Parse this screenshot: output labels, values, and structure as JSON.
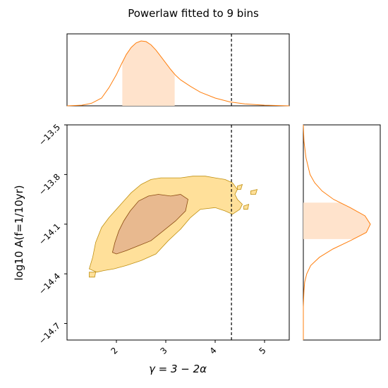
{
  "chart_data": [
    {
      "type": "area",
      "panel": "top-marginal",
      "title": "Powerlaw fitted to 9 bins",
      "xlim": [
        1.0,
        5.5
      ],
      "series": [
        {
          "x": [
            1.0,
            1.3,
            1.5,
            1.7,
            1.85,
            2.0,
            2.1,
            2.2,
            2.3,
            2.4,
            2.5,
            2.6,
            2.7,
            2.8,
            2.9,
            3.0,
            3.1,
            3.2,
            3.3,
            3.5,
            3.7,
            4.0,
            4.3,
            4.6,
            5.0,
            5.5
          ],
          "y": [
            0.0,
            0.01,
            0.04,
            0.12,
            0.28,
            0.48,
            0.64,
            0.79,
            0.9,
            0.97,
            1.0,
            0.99,
            0.94,
            0.86,
            0.76,
            0.66,
            0.56,
            0.47,
            0.4,
            0.3,
            0.21,
            0.12,
            0.06,
            0.03,
            0.01,
            0.0
          ]
        }
      ],
      "credible_interval": [
        2.12,
        3.18
      ],
      "reference_line": 4.33,
      "color": "#ff7f0e",
      "fill_color": "#ffe3cc"
    },
    {
      "type": "area",
      "panel": "right-marginal",
      "ylim": [
        -14.8,
        -13.5
      ],
      "series": [
        {
          "y": [
            -13.5,
            -13.6,
            -13.7,
            -13.8,
            -13.85,
            -13.9,
            -13.95,
            -14.0,
            -14.05,
            -14.1,
            -14.15,
            -14.2,
            -14.25,
            -14.3,
            -14.35,
            -14.4,
            -14.45,
            -14.5,
            -14.6,
            -14.8
          ],
          "x": [
            0.0,
            0.01,
            0.04,
            0.1,
            0.17,
            0.28,
            0.45,
            0.7,
            0.92,
            1.0,
            0.94,
            0.7,
            0.44,
            0.24,
            0.11,
            0.05,
            0.02,
            0.01,
            0.0,
            0.0
          ]
        }
      ],
      "credible_interval": [
        -14.19,
        -13.97
      ],
      "color": "#ff7f0e",
      "fill_color": "#ffe3cc"
    },
    {
      "type": "area",
      "panel": "joint-contours",
      "xlabel": "γ = 3 − 2α",
      "ylabel": "log10 A(f=1/10yr)",
      "xlim": [
        1.0,
        5.5
      ],
      "ylim": [
        -14.8,
        -13.5
      ],
      "xticks": [
        2,
        3,
        4,
        5
      ],
      "yticks": [
        -13.5,
        -13.8,
        -14.1,
        -14.4,
        -14.7
      ],
      "reference_line": 4.33,
      "contours": [
        {
          "level": "outer",
          "fill": "#ffe09a",
          "stroke": "#c09010",
          "points": [
            [
              1.45,
              -14.37
            ],
            [
              1.52,
              -14.3
            ],
            [
              1.58,
              -14.21
            ],
            [
              1.7,
              -14.12
            ],
            [
              1.85,
              -14.06
            ],
            [
              2.0,
              -14.01
            ],
            [
              2.15,
              -13.96
            ],
            [
              2.3,
              -13.91
            ],
            [
              2.5,
              -13.86
            ],
            [
              2.7,
              -13.83
            ],
            [
              2.9,
              -13.82
            ],
            [
              3.1,
              -13.82
            ],
            [
              3.3,
              -13.82
            ],
            [
              3.55,
              -13.81
            ],
            [
              3.8,
              -13.81
            ],
            [
              4.0,
              -13.82
            ],
            [
              4.2,
              -13.83
            ],
            [
              4.35,
              -13.85
            ],
            [
              4.45,
              -13.89
            ],
            [
              4.4,
              -13.92
            ],
            [
              4.45,
              -13.95
            ],
            [
              4.55,
              -13.98
            ],
            [
              4.5,
              -14.01
            ],
            [
              4.35,
              -14.04
            ],
            [
              4.2,
              -14.02
            ],
            [
              4.0,
              -14.0
            ],
            [
              3.7,
              -14.01
            ],
            [
              3.5,
              -14.06
            ],
            [
              3.3,
              -14.13
            ],
            [
              3.05,
              -14.2
            ],
            [
              2.8,
              -14.28
            ],
            [
              2.5,
              -14.32
            ],
            [
              2.2,
              -14.35
            ],
            [
              1.95,
              -14.37
            ],
            [
              1.75,
              -14.38
            ],
            [
              1.6,
              -14.39
            ]
          ]
        },
        {
          "level": "inner",
          "fill": "#e8b98f",
          "stroke": "#8a4a10",
          "points": [
            [
              1.92,
              -14.27
            ],
            [
              1.97,
              -14.21
            ],
            [
              2.05,
              -14.14
            ],
            [
              2.15,
              -14.08
            ],
            [
              2.28,
              -14.02
            ],
            [
              2.45,
              -13.96
            ],
            [
              2.65,
              -13.93
            ],
            [
              2.85,
              -13.92
            ],
            [
              3.1,
              -13.93
            ],
            [
              3.3,
              -13.92
            ],
            [
              3.45,
              -13.95
            ],
            [
              3.4,
              -14.02
            ],
            [
              3.2,
              -14.08
            ],
            [
              2.95,
              -14.14
            ],
            [
              2.7,
              -14.2
            ],
            [
              2.45,
              -14.23
            ],
            [
              2.2,
              -14.26
            ],
            [
              2.0,
              -14.28
            ]
          ]
        }
      ],
      "islands": [
        [
          [
            4.45,
            -13.87
          ],
          [
            4.55,
            -13.86
          ],
          [
            4.52,
            -13.89
          ],
          [
            4.45,
            -13.89
          ]
        ],
        [
          [
            4.72,
            -13.9
          ],
          [
            4.85,
            -13.89
          ],
          [
            4.82,
            -13.92
          ],
          [
            4.72,
            -13.92
          ]
        ],
        [
          [
            4.58,
            -13.99
          ],
          [
            4.68,
            -13.98
          ],
          [
            4.66,
            -14.01
          ],
          [
            4.58,
            -14.01
          ]
        ],
        [
          [
            1.45,
            -14.39
          ],
          [
            1.58,
            -14.39
          ],
          [
            1.56,
            -14.42
          ],
          [
            1.45,
            -14.42
          ]
        ]
      ]
    }
  ]
}
